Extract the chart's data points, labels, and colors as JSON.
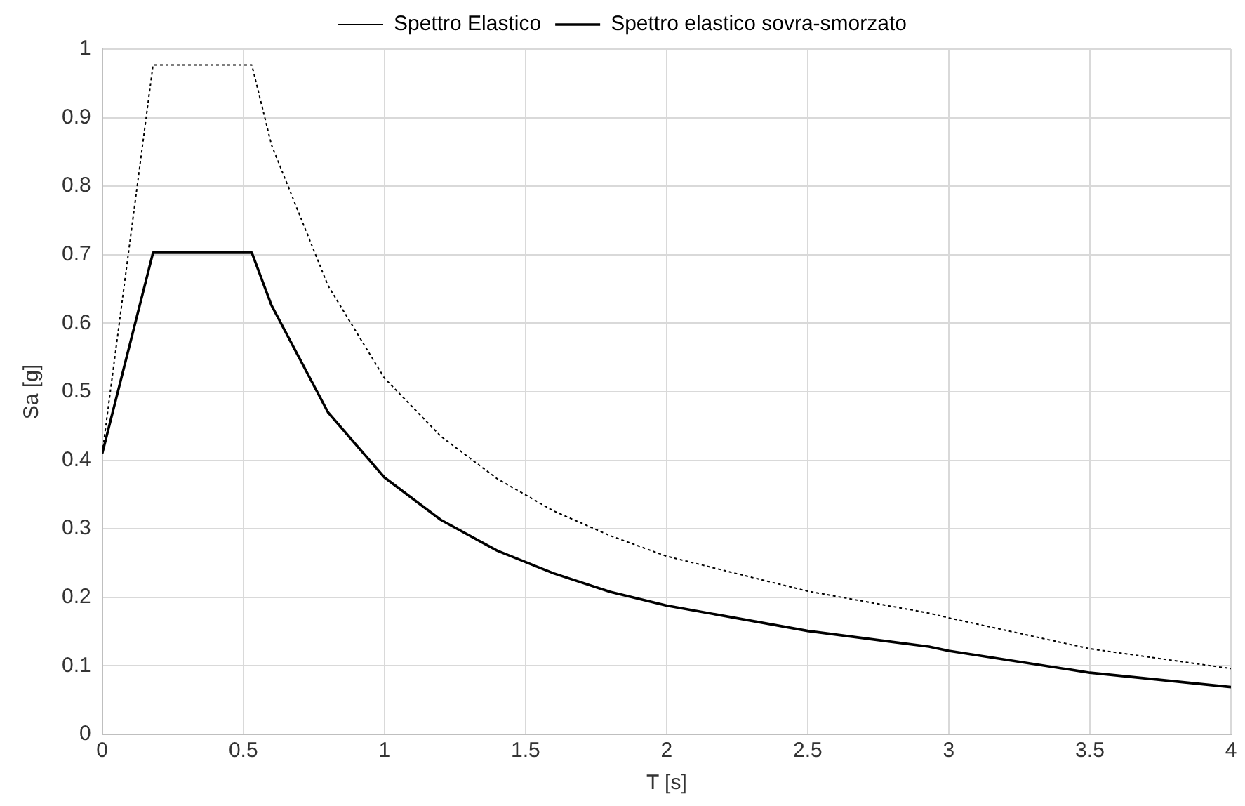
{
  "chart_data": {
    "type": "line",
    "xlabel": "T [s]",
    "ylabel": "Sa [g]",
    "xlim": [
      0,
      4
    ],
    "xticks": [
      0,
      0.5,
      1,
      1.5,
      2,
      2.5,
      3,
      3.5,
      4
    ],
    "ylim": [
      0,
      1
    ],
    "yticks": [
      0,
      0.1,
      0.2,
      0.3,
      0.4,
      0.5,
      0.6,
      0.7,
      0.8,
      0.9,
      1
    ],
    "grid": true,
    "legend": "top",
    "marker": "none",
    "x": [
      0,
      0.18,
      0.53,
      0.6,
      0.8,
      1.0,
      1.2,
      1.4,
      1.6,
      1.8,
      2.0,
      2.5,
      2.93,
      3.0,
      3.5,
      4.0
    ],
    "series": [
      {
        "name": "Spettro Elastico",
        "color": "#000000",
        "line_style": "dotted",
        "values": [
          0.41,
          0.977,
          0.977,
          0.86,
          0.655,
          0.52,
          0.435,
          0.373,
          0.326,
          0.29,
          0.26,
          0.209,
          0.177,
          0.17,
          0.125,
          0.096
        ]
      },
      {
        "name": "Spettro elastico sovra-smorzato",
        "color": "#000000",
        "line_style": "solid",
        "values": [
          0.41,
          0.703,
          0.703,
          0.626,
          0.47,
          0.375,
          0.313,
          0.268,
          0.235,
          0.208,
          0.188,
          0.151,
          0.128,
          0.122,
          0.09,
          0.069
        ]
      }
    ]
  }
}
